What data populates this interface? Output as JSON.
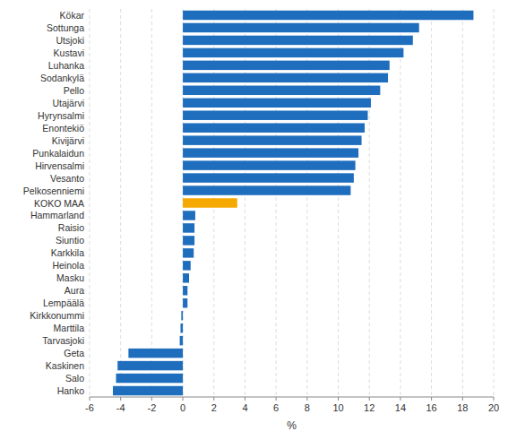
{
  "chart_data": {
    "type": "bar",
    "orientation": "horizontal",
    "categories": [
      "Hanko",
      "Salo",
      "Kaskinen",
      "Geta",
      "Tarvasjoki",
      "Marttila",
      "Kirkkonummi",
      "Lempäälä",
      "Aura",
      "Masku",
      "Heinola",
      "Karkkila",
      "Siuntio",
      "Raisio",
      "Hammarland",
      "KOKO MAA",
      "Pelkosenniemi",
      "Vesanto",
      "Hirvensalmi",
      "Punkalaidun",
      "Kivijärvi",
      "Enontekiö",
      "Hyrynsalmi",
      "Utajärvi",
      "Pello",
      "Sodankylä",
      "Luhanka",
      "Kustavi",
      "Utsjoki",
      "Sottunga",
      "Kökar"
    ],
    "values": [
      -4.5,
      -4.3,
      -4.2,
      -3.5,
      -0.2,
      -0.15,
      -0.1,
      0.3,
      0.3,
      0.4,
      0.5,
      0.7,
      0.75,
      0.75,
      0.8,
      3.5,
      10.8,
      11.0,
      11.1,
      11.3,
      11.5,
      11.7,
      11.9,
      12.1,
      12.7,
      13.2,
      13.3,
      14.2,
      14.8,
      15.2,
      18.7
    ],
    "colors": [
      "#1F6EBE",
      "#1F6EBE",
      "#1F6EBE",
      "#1F6EBE",
      "#1F6EBE",
      "#1F6EBE",
      "#1F6EBE",
      "#1F6EBE",
      "#1F6EBE",
      "#1F6EBE",
      "#1F6EBE",
      "#1F6EBE",
      "#1F6EBE",
      "#1F6EBE",
      "#1F6EBE",
      "#F5A800",
      "#1F6EBE",
      "#1F6EBE",
      "#1F6EBE",
      "#1F6EBE",
      "#1F6EBE",
      "#1F6EBE",
      "#1F6EBE",
      "#1F6EBE",
      "#1F6EBE",
      "#1F6EBE",
      "#1F6EBE",
      "#1F6EBE",
      "#1F6EBE",
      "#1F6EBE",
      "#1F6EBE"
    ],
    "xlabel": "%",
    "xlim": [
      -6,
      20
    ],
    "xticks": [
      -6,
      -4,
      -2,
      0,
      2,
      4,
      6,
      8,
      10,
      12,
      14,
      16,
      18,
      20
    ],
    "grid": true
  }
}
